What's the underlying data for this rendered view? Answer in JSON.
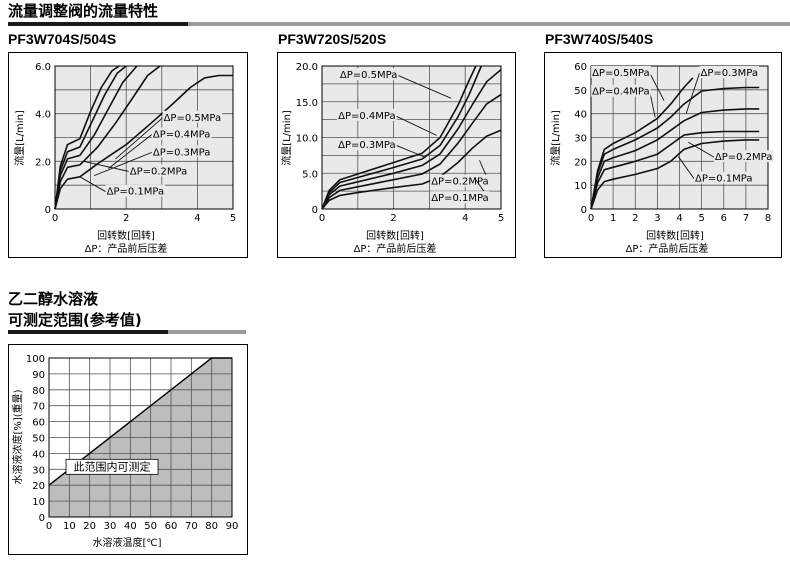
{
  "section1": {
    "title": "流量调整阀的流量特性"
  },
  "section2": {
    "title_line1": "乙二醇水溶液",
    "title_line2": "可测定范围(参考值)"
  },
  "chart_data": [
    {
      "type": "line",
      "model": "PF3W704S/504S",
      "xlabel": "回转数[回转]",
      "sublabel": "ΔP：产品前后压差",
      "ylabel": "流量[L/min]",
      "xlim": [
        0,
        5
      ],
      "ylim": [
        0,
        6
      ],
      "xticks": [
        "0",
        "2",
        "4",
        "5"
      ],
      "xtick_values": [
        0,
        2,
        4,
        5
      ],
      "xgrid": [
        0,
        1,
        2,
        3,
        4,
        5
      ],
      "yticks": [
        "0",
        "2.0",
        "4.0",
        "6.0"
      ],
      "ytick_values": [
        0,
        2,
        4,
        6
      ],
      "ygrid": [
        0,
        1,
        2,
        3,
        4,
        5,
        6
      ],
      "series": [
        {
          "name": "ΔP=0.1MPa",
          "x": [
            0,
            0.15,
            0.35,
            0.7,
            1.2,
            2.0,
            2.7,
            3.3,
            3.8,
            4.2,
            4.6,
            5.0
          ],
          "y": [
            0,
            0.85,
            1.25,
            1.35,
            1.9,
            2.7,
            3.6,
            4.4,
            5.1,
            5.5,
            5.6,
            5.6
          ]
        },
        {
          "name": "ΔP=0.2MPa",
          "x": [
            0,
            0.15,
            0.35,
            0.7,
            1.2,
            1.7,
            2.2,
            2.6,
            2.95
          ],
          "y": [
            0,
            1.15,
            1.75,
            1.85,
            2.6,
            3.6,
            4.7,
            5.6,
            6.0
          ]
        },
        {
          "name": "ΔP=0.3MPa",
          "x": [
            0,
            0.15,
            0.35,
            0.7,
            1.1,
            1.5,
            1.9,
            2.3
          ],
          "y": [
            0,
            1.4,
            2.1,
            2.25,
            3.1,
            4.2,
            5.3,
            6.0
          ]
        },
        {
          "name": "ΔP=0.4MPa",
          "x": [
            0,
            0.15,
            0.35,
            0.7,
            1.05,
            1.4,
            1.75,
            2.0
          ],
          "y": [
            0,
            1.6,
            2.4,
            2.6,
            3.7,
            4.8,
            5.7,
            6.0
          ]
        },
        {
          "name": "ΔP=0.5MPa",
          "x": [
            0,
            0.15,
            0.35,
            0.7,
            1.0,
            1.3,
            1.6,
            1.8
          ],
          "y": [
            0,
            1.8,
            2.7,
            2.95,
            4.1,
            5.1,
            5.8,
            6.0
          ]
        }
      ],
      "annotations": [
        {
          "text": "ΔP=0.5MPa",
          "x": 3.05,
          "y": 3.7,
          "to": [
            1.7,
            2.1
          ]
        },
        {
          "text": "ΔP=0.4MPa",
          "x": 2.75,
          "y": 3.0,
          "to": [
            1.5,
            1.7
          ]
        },
        {
          "text": "ΔP=0.3MPa",
          "x": 2.75,
          "y": 2.25,
          "to": [
            1.1,
            1.4
          ]
        },
        {
          "text": "ΔP=0.2MPa",
          "x": 2.1,
          "y": 1.45,
          "to": [
            0.8,
            2.0
          ]
        },
        {
          "text": "ΔP=0.1MPa",
          "x": 1.45,
          "y": 0.6,
          "to": [
            0.7,
            1.35
          ]
        }
      ]
    },
    {
      "type": "line",
      "model": "PF3W720S/520S",
      "xlabel": "回转数[回转]",
      "sublabel": "ΔP：产品前后压差",
      "ylabel": "流量[L/min]",
      "xlim": [
        0,
        5
      ],
      "ylim": [
        0,
        20
      ],
      "xticks": [
        "0",
        "2",
        "4",
        "5"
      ],
      "xtick_values": [
        0,
        2,
        4,
        5
      ],
      "xgrid": [
        0,
        1,
        2,
        3,
        4,
        5
      ],
      "yticks": [
        "0",
        "5.0",
        "10.0",
        "15.0",
        "20.0"
      ],
      "ytick_values": [
        0,
        5,
        10,
        15,
        20
      ],
      "ygrid": [
        0,
        2.5,
        5,
        7.5,
        10,
        12.5,
        15,
        17.5,
        20
      ],
      "series": [
        {
          "name": "ΔP=0.1MPa",
          "x": [
            0,
            0.2,
            0.5,
            1.0,
            2.0,
            2.8,
            3.3,
            3.8,
            4.2,
            4.6,
            5.0
          ],
          "y": [
            0,
            1.2,
            1.9,
            2.3,
            3.0,
            3.5,
            4.5,
            6.5,
            8.5,
            10.2,
            11.0
          ]
        },
        {
          "name": "ΔP=0.2MPa",
          "x": [
            0,
            0.2,
            0.5,
            1.0,
            2.0,
            2.8,
            3.3,
            3.8,
            4.2,
            4.6,
            5.0
          ],
          "y": [
            0,
            1.6,
            2.6,
            3.1,
            4.1,
            4.9,
            6.3,
            9.2,
            12.0,
            14.7,
            16.0
          ]
        },
        {
          "name": "ΔP=0.3MPa",
          "x": [
            0,
            0.2,
            0.5,
            1.0,
            2.0,
            2.8,
            3.3,
            3.8,
            4.2,
            4.6,
            5.0
          ],
          "y": [
            0,
            2.0,
            3.2,
            3.8,
            5.0,
            6.1,
            7.7,
            11.2,
            14.6,
            17.8,
            19.5
          ]
        },
        {
          "name": "ΔP=0.4MPa",
          "x": [
            0,
            0.2,
            0.5,
            1.0,
            2.0,
            2.8,
            3.3,
            3.8,
            4.1,
            4.45
          ],
          "y": [
            0,
            2.3,
            3.7,
            4.4,
            5.8,
            7.0,
            8.9,
            12.9,
            15.9,
            20.0
          ]
        },
        {
          "name": "ΔP=0.5MPa",
          "x": [
            0,
            0.2,
            0.5,
            1.0,
            2.0,
            2.8,
            3.3,
            3.8,
            4.1,
            4.3
          ],
          "y": [
            0,
            2.6,
            4.1,
            4.9,
            6.5,
            7.8,
            10.0,
            14.5,
            17.9,
            20.0
          ]
        }
      ],
      "annotations": [
        {
          "text": "ΔP=0.5MPa",
          "x": 0.5,
          "y": 18.3,
          "to": [
            3.6,
            15.5
          ]
        },
        {
          "text": "ΔP=0.4MPa",
          "x": 0.45,
          "y": 12.6,
          "to": [
            3.2,
            10.3
          ]
        },
        {
          "text": "ΔP=0.3MPa",
          "x": 0.45,
          "y": 8.5,
          "to": [
            2.9,
            7.2
          ]
        },
        {
          "text": "ΔP=0.2MPa",
          "x": 3.05,
          "y": 3.4,
          "to": [
            4.4,
            6.8
          ]
        },
        {
          "text": "ΔP=0.1MPa",
          "x": 3.05,
          "y": 1.1,
          "to": [
            4.25,
            4.4
          ]
        }
      ]
    },
    {
      "type": "line",
      "model": "PF3W740S/540S",
      "xlabel": "回转数[回转]",
      "sublabel": "ΔP：产品前后压差",
      "ylabel": "流量[L/min]",
      "xlim": [
        0,
        8
      ],
      "ylim": [
        0,
        60
      ],
      "xticks": [
        "0",
        "1",
        "2",
        "3",
        "4",
        "5",
        "6",
        "7",
        "8"
      ],
      "xtick_values": [
        0,
        1,
        2,
        3,
        4,
        5,
        6,
        7,
        8
      ],
      "xgrid": [
        0,
        1,
        2,
        3,
        4,
        5,
        6,
        7,
        8
      ],
      "yticks": [
        "0",
        "10",
        "20",
        "30",
        "40",
        "50",
        "60"
      ],
      "ytick_values": [
        0,
        10,
        20,
        30,
        40,
        50,
        60
      ],
      "ygrid": [
        0,
        10,
        20,
        30,
        40,
        50,
        60
      ],
      "series": [
        {
          "name": "ΔP=0.1MPa",
          "x": [
            0,
            0.3,
            0.6,
            1.0,
            2.0,
            3.0,
            3.6,
            4.2,
            5.0,
            6.0,
            7.0,
            7.6
          ],
          "y": [
            0,
            8.0,
            11.5,
            12.5,
            14.5,
            17.0,
            20.0,
            25.0,
            27.5,
            28.5,
            29.0,
            29.0
          ]
        },
        {
          "name": "ΔP=0.2MPa",
          "x": [
            0,
            0.3,
            0.6,
            1.0,
            2.0,
            3.0,
            3.6,
            4.2,
            5.0,
            6.0,
            7.0,
            7.6
          ],
          "y": [
            0,
            11.0,
            16.5,
            17.5,
            20.0,
            23.0,
            27.0,
            31.0,
            32.0,
            32.5,
            32.5,
            32.5
          ]
        },
        {
          "name": "ΔP=0.3MPa",
          "x": [
            0,
            0.3,
            0.6,
            1.0,
            2.0,
            3.0,
            3.6,
            4.2,
            5.0,
            6.0,
            7.0,
            7.6
          ],
          "y": [
            0,
            13.0,
            20.0,
            21.5,
            24.5,
            29.0,
            33.0,
            37.0,
            40.5,
            41.5,
            42.0,
            42.0
          ]
        },
        {
          "name": "ΔP=0.4MPa",
          "x": [
            0,
            0.3,
            0.6,
            1.0,
            2.0,
            3.0,
            3.6,
            4.2,
            5.0,
            6.0,
            7.0,
            7.6
          ],
          "y": [
            0,
            15.0,
            23.0,
            25.0,
            29.0,
            34.0,
            38.5,
            44.0,
            49.5,
            50.5,
            51.0,
            51.0
          ]
        },
        {
          "name": "ΔP=0.5MPa",
          "x": [
            0,
            0.3,
            0.6,
            1.0,
            2.0,
            3.0,
            3.6,
            4.2,
            4.6
          ],
          "y": [
            0,
            16.0,
            25.0,
            27.5,
            32.0,
            38.0,
            44.0,
            51.0,
            55.0
          ]
        }
      ],
      "annotations": [
        {
          "text": "ΔP=0.5MPa",
          "x": 0.05,
          "y": 55.8,
          "to": [
            3.3,
            45.5
          ]
        },
        {
          "text": "ΔP=0.4MPa",
          "x": 0.05,
          "y": 48.0,
          "to": [
            2.9,
            38.5
          ]
        },
        {
          "text": "ΔP=0.3MPa",
          "x": 4.95,
          "y": 55.8,
          "to": [
            4.3,
            40.0
          ]
        },
        {
          "text": "ΔP=0.2MPa",
          "x": 5.6,
          "y": 20.5,
          "to": [
            4.4,
            28.0
          ]
        },
        {
          "text": "ΔP=0.1MPa",
          "x": 4.7,
          "y": 11.5,
          "to": [
            3.95,
            22.0
          ]
        }
      ]
    },
    {
      "type": "area",
      "xlabel": "水溶液温度[℃]",
      "ylabel": "水溶液浓度[%](重量)",
      "xlim": [
        0,
        90
      ],
      "ylim": [
        0,
        100
      ],
      "xticks": [
        "0",
        "10",
        "20",
        "30",
        "40",
        "50",
        "60",
        "70",
        "80",
        "90"
      ],
      "xtick_values": [
        0,
        10,
        20,
        30,
        40,
        50,
        60,
        70,
        80,
        90
      ],
      "xgrid": [
        0,
        10,
        20,
        30,
        40,
        50,
        60,
        70,
        80,
        90
      ],
      "yticks": [
        "0",
        "10",
        "20",
        "30",
        "40",
        "50",
        "60",
        "70",
        "80",
        "90",
        "100"
      ],
      "ytick_values": [
        0,
        10,
        20,
        30,
        40,
        50,
        60,
        70,
        80,
        90,
        100
      ],
      "ygrid": [
        0,
        10,
        20,
        30,
        40,
        50,
        60,
        70,
        80,
        90,
        100
      ],
      "boundary": {
        "x": [
          0,
          80,
          90
        ],
        "y": [
          20,
          100,
          100
        ]
      },
      "region_label": "此范围内可测定",
      "region_label_at": [
        31,
        30
      ]
    }
  ]
}
